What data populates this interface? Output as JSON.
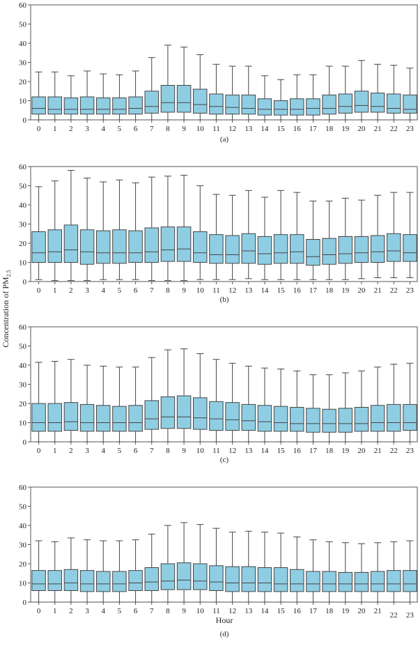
{
  "figure": {
    "ylabel_prefix": "Concentration of PM",
    "ylabel_subscript": "2.5",
    "xlabel": "Hour",
    "box_color": "#8fcde3",
    "stroke_color": "#444444"
  },
  "chart_data": [
    {
      "type": "box",
      "panel": "(a)",
      "ylim": [
        0,
        60
      ],
      "yticks": [
        0,
        10,
        20,
        30,
        40,
        50,
        60
      ],
      "categories": [
        "0",
        "1",
        "2",
        "3",
        "4",
        "5",
        "6",
        "7",
        "8",
        "9",
        "10",
        "11",
        "12",
        "13",
        "14",
        "15",
        "16",
        "17",
        "18",
        "19",
        "20",
        "21",
        "22",
        "23"
      ],
      "whisker_low": [
        0,
        0,
        0,
        0,
        0,
        0,
        0,
        0,
        0,
        0,
        0,
        0,
        0,
        0,
        0,
        0,
        0,
        0,
        0,
        0,
        0,
        0,
        0,
        0
      ],
      "q1": [
        3,
        3,
        3,
        3,
        3,
        3,
        3,
        3.5,
        4,
        4,
        3.5,
        3,
        3,
        3,
        2.5,
        2.5,
        2.5,
        2.5,
        3,
        3.5,
        4,
        4,
        3.5,
        3.5
      ],
      "median": [
        6,
        5.5,
        5.5,
        5.5,
        5.5,
        5.5,
        6,
        7,
        9,
        9,
        8,
        7,
        6.5,
        6,
        5.5,
        5.5,
        5.5,
        6,
        6,
        7,
        7.5,
        7,
        6,
        5.5
      ],
      "q3": [
        12,
        12,
        11.5,
        12,
        11.5,
        11.5,
        12,
        15,
        18,
        18,
        16,
        13.5,
        13,
        13,
        11,
        10,
        11,
        11,
        13,
        13.5,
        15,
        14,
        13.5,
        13
      ],
      "whisker_high": [
        25,
        25,
        23,
        25.5,
        24,
        23.5,
        25.5,
        32.5,
        39,
        38,
        34,
        29,
        28,
        28,
        23,
        21,
        23.5,
        23.5,
        28,
        28,
        31,
        29,
        28.5,
        27
      ]
    },
    {
      "type": "box",
      "panel": "(b)",
      "ylim": [
        0,
        60
      ],
      "yticks": [
        0,
        10,
        20,
        30,
        40,
        50,
        60
      ],
      "categories": [
        "0",
        "1",
        "2",
        "3",
        "4",
        "5",
        "6",
        "7",
        "8",
        "9",
        "10",
        "11",
        "12",
        "13",
        "14",
        "15",
        "16",
        "17",
        "18",
        "19",
        "20",
        "21",
        "22",
        "23"
      ],
      "whisker_low": [
        1,
        0.5,
        0.5,
        0.5,
        1,
        1,
        1,
        0.5,
        0.5,
        0.5,
        1,
        1,
        1,
        1.5,
        1,
        1,
        1,
        1,
        1,
        1,
        1.5,
        2,
        2,
        2
      ],
      "q1": [
        10,
        10,
        10,
        9,
        9.5,
        9.5,
        10,
        10,
        10.5,
        10.5,
        10,
        9.5,
        9.5,
        9.5,
        9,
        9.5,
        9.5,
        8.5,
        9,
        9.5,
        10,
        10,
        10.5,
        10.5
      ],
      "median": [
        15,
        15.5,
        16.5,
        15.5,
        15,
        15,
        15,
        15.5,
        16.5,
        17,
        15,
        14,
        14,
        16,
        14.5,
        15,
        15.5,
        13,
        14,
        14.5,
        15,
        15.5,
        16,
        15
      ],
      "q3": [
        26,
        27,
        29.5,
        27,
        26.5,
        27,
        26.5,
        28,
        28.5,
        28.5,
        26,
        24.5,
        24,
        25,
        23.5,
        24.5,
        24.5,
        22,
        22.5,
        23.5,
        23.5,
        24,
        25,
        24.5
      ],
      "whisker_high": [
        49.5,
        52.5,
        58,
        54,
        52,
        53,
        51.5,
        54.5,
        55,
        55.5,
        50,
        45.5,
        45,
        47.5,
        44,
        47.5,
        46.5,
        42,
        42,
        43.5,
        42.5,
        45,
        46.5,
        46.5
      ]
    },
    {
      "type": "box",
      "panel": "(c)",
      "ylim": [
        0,
        60
      ],
      "yticks": [
        0,
        10,
        20,
        30,
        40,
        50,
        60
      ],
      "categories": [
        "0",
        "1",
        "2",
        "3",
        "4",
        "5",
        "6",
        "7",
        "8",
        "9",
        "10",
        "11",
        "12",
        "13",
        "14",
        "15",
        "16",
        "17",
        "18",
        "19",
        "20",
        "21",
        "22",
        "23"
      ],
      "whisker_low": [
        0,
        0,
        0,
        0,
        0,
        0,
        0,
        0,
        0,
        0,
        0,
        0,
        0,
        0,
        0,
        0,
        0,
        0,
        0,
        0,
        0,
        0,
        0,
        0
      ],
      "q1": [
        5.5,
        5.5,
        6,
        5.5,
        5.5,
        5.5,
        5.5,
        6.5,
        7,
        7,
        6.5,
        6,
        6,
        6,
        5.5,
        5.5,
        5.5,
        5,
        5,
        5,
        5.5,
        5.5,
        5.5,
        6
      ],
      "median": [
        10,
        10,
        10.5,
        10,
        10,
        10,
        10,
        12,
        13,
        13,
        12.5,
        12,
        11.5,
        11,
        10.5,
        10,
        9.5,
        9.5,
        9.5,
        9.5,
        9.5,
        10,
        10,
        10
      ],
      "q3": [
        20,
        20,
        20.5,
        19.5,
        19,
        18.5,
        19,
        21.5,
        23.5,
        24,
        23,
        21,
        20.5,
        19.5,
        19,
        18.5,
        18,
        17.5,
        17,
        17.5,
        18,
        19,
        19.5,
        19.5
      ],
      "whisker_high": [
        41.5,
        42,
        43,
        40,
        39.5,
        39,
        39,
        44,
        48,
        48.5,
        46,
        43,
        41,
        39.5,
        38.5,
        38,
        37,
        35,
        35,
        36,
        37,
        39,
        40.5,
        41
      ]
    },
    {
      "type": "box",
      "panel": "(d)",
      "ylim": [
        0,
        60
      ],
      "yticks": [
        0,
        10,
        20,
        30,
        40,
        50,
        60
      ],
      "categories": [
        "0",
        "1",
        "2",
        "3",
        "4",
        "5",
        "6",
        "7",
        "8",
        "9",
        "10",
        "11",
        "12",
        "13",
        "14",
        "15",
        "16",
        "17",
        "18",
        "19",
        "20",
        "21",
        "22",
        "23"
      ],
      "whisker_low": [
        0,
        0,
        0,
        0,
        0,
        0,
        0,
        0,
        0,
        0,
        0,
        0,
        0,
        0,
        0,
        0,
        0,
        0,
        0,
        0,
        0,
        0,
        0,
        0
      ],
      "q1": [
        6,
        6,
        6,
        5.5,
        5.5,
        5.5,
        6,
        6,
        6.5,
        6.5,
        6.5,
        6,
        5.5,
        5.5,
        5.5,
        5.5,
        5.5,
        5.5,
        5.5,
        5.5,
        5.5,
        5.5,
        5.5,
        5.5
      ],
      "median": [
        9.5,
        9.5,
        10,
        9.5,
        9.5,
        9.5,
        10,
        10.5,
        11,
        11.5,
        11,
        10.5,
        10,
        10,
        10,
        9.5,
        9.5,
        9.5,
        9.5,
        9.5,
        9.5,
        9.5,
        9.5,
        9.5
      ],
      "q3": [
        16.5,
        16.5,
        17,
        16.5,
        16,
        16,
        16.5,
        18,
        20,
        20.5,
        20,
        19,
        18.5,
        18.5,
        18,
        18,
        17,
        16,
        16,
        15.5,
        15.5,
        16,
        16.5,
        16.5
      ],
      "whisker_high": [
        32,
        31.5,
        33.5,
        32.5,
        32,
        32,
        32.5,
        35.5,
        40,
        41.5,
        40.5,
        38.5,
        36.5,
        37,
        36.5,
        36,
        34,
        32.5,
        31.5,
        31,
        30.5,
        31,
        31.5,
        32
      ]
    }
  ]
}
